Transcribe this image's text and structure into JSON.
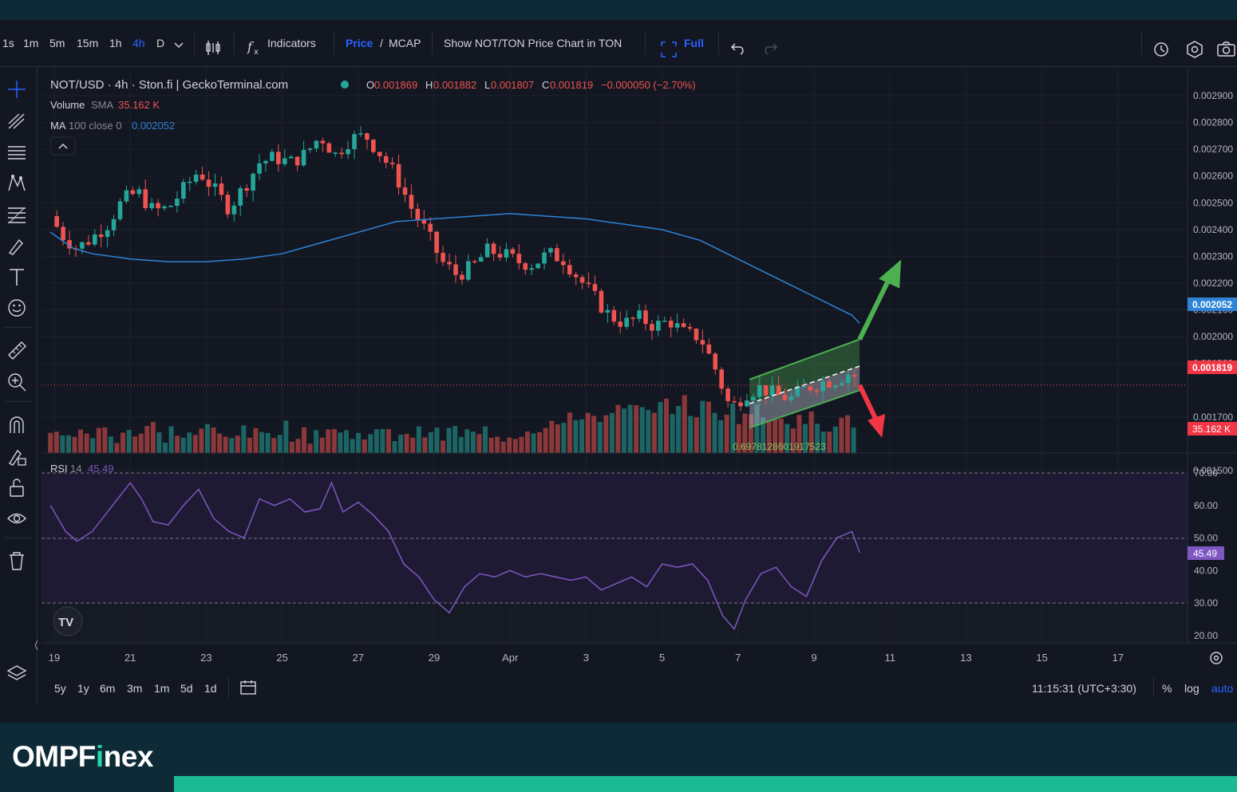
{
  "toolbar": {
    "intervals": [
      "1s",
      "1m",
      "5m",
      "15m",
      "1h",
      "4h",
      "D"
    ],
    "active_interval": "4h",
    "indicators_label": "Indicators",
    "price_label": "Price",
    "slash": "/",
    "mcap_label": "MCAP",
    "show_ton_label": "Show NOT/TON Price Chart in TON",
    "full_label": "Full"
  },
  "legend": {
    "symbol": "NOT/USD · 4h · Ston.fi | GeckoTerminal.com",
    "o_label": "O",
    "o_value": "0.001869",
    "h_label": "H",
    "h_value": "0.001882",
    "l_label": "L",
    "l_value": "0.001807",
    "c_label": "C",
    "c_value": "0.001819",
    "change": "−0.000050 (−2.70%)",
    "volume_label": "Volume",
    "volume_ind": "SMA",
    "volume_value": "35.162 K",
    "ma_label": "MA",
    "ma_params": "100 close 0",
    "ma_value": "0.002052",
    "rsi_label": "RSI",
    "rsi_params": "14",
    "rsi_value": "45.49"
  },
  "channel_label": "0.6978128601917523",
  "price_badges": {
    "ma": "0.002052",
    "last": "0.001819",
    "volume": "35.162 K",
    "rsi": "45.49"
  },
  "bottom": {
    "ranges": [
      "5y",
      "1y",
      "6m",
      "3m",
      "1m",
      "5d",
      "1d"
    ],
    "time": "11:15:31 (UTC+3:30)",
    "percent": "%",
    "log": "log",
    "auto": "auto"
  },
  "footer": {
    "logo_a": "OMPF",
    "logo_i": "i",
    "logo_b": "nex"
  },
  "colors": {
    "up": "#26a69a",
    "down": "#ef5350",
    "ma": "#2e84d6",
    "rsi": "#7e57c2",
    "accent": "#2962ff",
    "green_arrow": "#4caf50",
    "red_arrow": "#f23645"
  },
  "icons": [
    "crosshair-icon",
    "trendline-icon",
    "horizontal-lines-icon",
    "pattern-icon",
    "fib-icon",
    "brush-icon",
    "text-icon",
    "emoji-icon",
    "ruler-icon",
    "zoom-in-icon",
    "magnet-icon",
    "lock-drawings-icon",
    "unlock-icon",
    "eye-icon",
    "trash-icon",
    "layers-icon",
    "candle-style-icon",
    "undo-icon",
    "redo-icon",
    "alert-icon",
    "settings-icon",
    "camera-icon",
    "calendar-icon"
  ],
  "chart_data": [
    {
      "type": "candlestick",
      "title": "NOT/USD · 4h · Ston.fi | GeckoTerminal.com",
      "x_ticks": [
        "19",
        "21",
        "23",
        "25",
        "27",
        "29",
        "Apr",
        "3",
        "5",
        "7",
        "9",
        "11",
        "13",
        "15",
        "17"
      ],
      "y_ticks": [
        "0.002900",
        "0.002800",
        "0.002700",
        "0.002600",
        "0.002500",
        "0.002400",
        "0.002300",
        "0.002200",
        "0.002100",
        "0.002000",
        "0.001900",
        "0.001700",
        "0.001500"
      ],
      "ylim": [
        0.0015,
        0.0029
      ],
      "last_close": 0.001819,
      "ma100": {
        "name": "MA 100 close 0",
        "points": [
          [
            18.9,
            0.00239
          ],
          [
            19.5,
            0.00233
          ],
          [
            20,
            0.00231
          ],
          [
            21,
            0.00229
          ],
          [
            22,
            0.00228
          ],
          [
            23,
            0.00228
          ],
          [
            24,
            0.00229
          ],
          [
            25,
            0.00231
          ],
          [
            26,
            0.00235
          ],
          [
            27,
            0.00239
          ],
          [
            28,
            0.00243
          ],
          [
            29,
            0.00244
          ],
          [
            30,
            0.00245
          ],
          [
            31,
            0.00246
          ],
          [
            32,
            0.00245
          ],
          [
            33,
            0.00244
          ],
          [
            34,
            0.00242
          ],
          [
            35,
            0.0024
          ],
          [
            36,
            0.00236
          ],
          [
            37,
            0.00229
          ],
          [
            38,
            0.00222
          ],
          [
            39,
            0.00215
          ],
          [
            40,
            0.00208
          ],
          [
            40.2,
            0.00205
          ]
        ]
      },
      "close_series": {
        "name": "close",
        "points": [
          [
            18.9,
            0.00245
          ],
          [
            19.2,
            0.00238
          ],
          [
            19.6,
            0.00233
          ],
          [
            20,
            0.00237
          ],
          [
            20.4,
            0.00242
          ],
          [
            20.8,
            0.00251
          ],
          [
            21.2,
            0.00254
          ],
          [
            21.6,
            0.00247
          ],
          [
            22,
            0.00248
          ],
          [
            22.4,
            0.00255
          ],
          [
            22.8,
            0.00262
          ],
          [
            23.2,
            0.00255
          ],
          [
            23.6,
            0.00248
          ],
          [
            24,
            0.00256
          ],
          [
            24.4,
            0.00265
          ],
          [
            24.8,
            0.00267
          ],
          [
            25.2,
            0.00265
          ],
          [
            25.6,
            0.00268
          ],
          [
            26,
            0.00275
          ],
          [
            26.4,
            0.00268
          ],
          [
            26.8,
            0.00274
          ],
          [
            27.2,
            0.00275
          ],
          [
            27.6,
            0.00268
          ],
          [
            28,
            0.0026
          ],
          [
            28.4,
            0.00248
          ],
          [
            28.8,
            0.00239
          ],
          [
            29.2,
            0.00228
          ],
          [
            29.6,
            0.00223
          ],
          [
            30,
            0.00226
          ],
          [
            30.4,
            0.00232
          ],
          [
            30.8,
            0.00231
          ],
          [
            31.2,
            0.00228
          ],
          [
            31.6,
            0.00227
          ],
          [
            32,
            0.00231
          ],
          [
            32.4,
            0.00229
          ],
          [
            32.8,
            0.00222
          ],
          [
            33.2,
            0.00215
          ],
          [
            33.6,
            0.00208
          ],
          [
            34,
            0.00205
          ],
          [
            34.4,
            0.00207
          ],
          [
            34.8,
            0.00204
          ],
          [
            35.2,
            0.00206
          ],
          [
            35.6,
            0.00201
          ],
          [
            36,
            0.002
          ],
          [
            36.4,
            0.00188
          ],
          [
            36.8,
            0.00173
          ],
          [
            37.2,
            0.00179
          ],
          [
            37.6,
            0.00181
          ],
          [
            38,
            0.00178
          ],
          [
            38.4,
            0.00177
          ],
          [
            38.8,
            0.00181
          ],
          [
            39.2,
            0.00183
          ],
          [
            39.6,
            0.00184
          ],
          [
            40,
            0.00187
          ],
          [
            40.2,
            0.001819
          ]
        ]
      },
      "channel": {
        "upper": [
          [
            37.3,
            0.00184
          ],
          [
            40.2,
            0.00199
          ]
        ],
        "lower": [
          [
            37.3,
            0.00166
          ],
          [
            40.2,
            0.0018
          ]
        ],
        "mid": [
          [
            37.3,
            0.00175
          ],
          [
            40.2,
            0.00189
          ]
        ]
      },
      "arrows": [
        {
          "direction": "up",
          "color": "green"
        },
        {
          "direction": "down",
          "color": "red"
        }
      ]
    },
    {
      "type": "bar",
      "title": "Volume SMA",
      "value_last": "35.162 K",
      "volume_rel": [
        0.2,
        0.3,
        0.2,
        0.25,
        0.3,
        0.2,
        0.35,
        0.25,
        0.4,
        0.2,
        0.3,
        0.2,
        0.25,
        0.35,
        0.2,
        0.3,
        0.25,
        0.2,
        0.3,
        0.4,
        0.25,
        0.2,
        0.3,
        0.35,
        0.25,
        0.2,
        0.3,
        0.25,
        0.2,
        0.3,
        0.25,
        0.35,
        0.2,
        0.3,
        0.25,
        0.2,
        0.3,
        0.2,
        0.25,
        0.3,
        0.4,
        0.5,
        0.45,
        0.55,
        0.7,
        0.65,
        0.6,
        0.75,
        0.8,
        0.7,
        0.9,
        0.85,
        0.95,
        0.75,
        0.85,
        0.7,
        0.8,
        0.65,
        0.75,
        0.6,
        0.7,
        0.55,
        0.5,
        0.6,
        0.45,
        0.55,
        0.5
      ]
    },
    {
      "type": "line",
      "title": "RSI 14",
      "value_last": 45.49,
      "ylim": [
        15,
        80
      ],
      "y_ticks": [
        "70.00",
        "60.00",
        "50.00",
        "40.00",
        "30.00",
        "20.00"
      ],
      "bands": [
        30,
        50,
        70
      ],
      "points": [
        [
          18.9,
          60
        ],
        [
          19.3,
          52
        ],
        [
          19.6,
          49
        ],
        [
          20,
          52
        ],
        [
          20.4,
          58
        ],
        [
          20.8,
          64
        ],
        [
          21,
          67
        ],
        [
          21.3,
          62
        ],
        [
          21.6,
          55
        ],
        [
          22,
          54
        ],
        [
          22.4,
          60
        ],
        [
          22.8,
          65
        ],
        [
          23.2,
          56
        ],
        [
          23.6,
          52
        ],
        [
          24,
          50
        ],
        [
          24.4,
          62
        ],
        [
          24.8,
          60
        ],
        [
          25.2,
          62
        ],
        [
          25.6,
          58
        ],
        [
          26,
          59
        ],
        [
          26.3,
          67
        ],
        [
          26.6,
          58
        ],
        [
          27,
          61
        ],
        [
          27.4,
          57
        ],
        [
          27.8,
          52
        ],
        [
          28.2,
          42
        ],
        [
          28.6,
          38
        ],
        [
          29,
          31
        ],
        [
          29.4,
          27
        ],
        [
          29.8,
          35
        ],
        [
          30.2,
          39
        ],
        [
          30.6,
          38
        ],
        [
          31,
          40
        ],
        [
          31.4,
          38
        ],
        [
          31.8,
          39
        ],
        [
          32.2,
          38
        ],
        [
          32.6,
          37
        ],
        [
          33,
          38
        ],
        [
          33.4,
          34
        ],
        [
          33.8,
          36
        ],
        [
          34.2,
          38
        ],
        [
          34.6,
          35
        ],
        [
          35,
          42
        ],
        [
          35.4,
          41
        ],
        [
          35.8,
          42
        ],
        [
          36.2,
          37
        ],
        [
          36.6,
          26
        ],
        [
          36.9,
          22
        ],
        [
          37.2,
          31
        ],
        [
          37.6,
          39
        ],
        [
          38,
          41
        ],
        [
          38.4,
          35
        ],
        [
          38.8,
          32
        ],
        [
          39.2,
          43
        ],
        [
          39.6,
          50
        ],
        [
          40,
          52
        ],
        [
          40.2,
          45.49
        ]
      ]
    }
  ]
}
